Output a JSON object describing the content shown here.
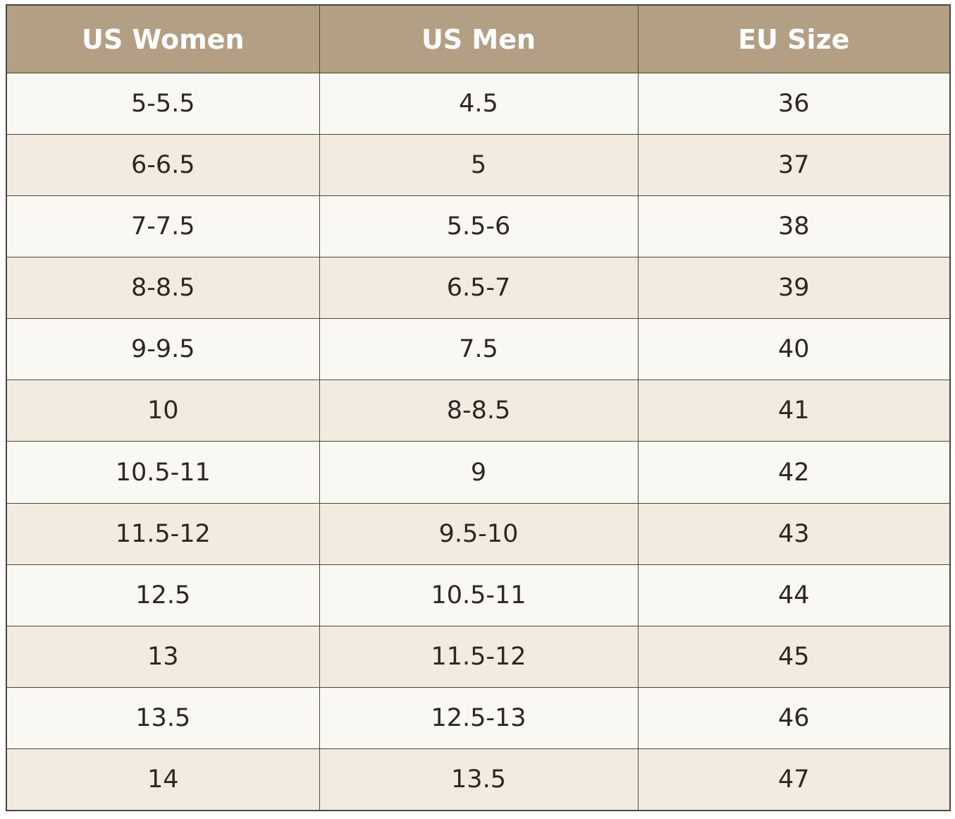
{
  "table": {
    "header": [
      "US Women",
      "US Men",
      "EU Size"
    ],
    "rows": [
      [
        "5-5.5",
        "4.5",
        "36"
      ],
      [
        "6-6.5",
        "5",
        "37"
      ],
      [
        "7-7.5",
        "5.5-6",
        "38"
      ],
      [
        "8-8.5",
        "6.5-7",
        "39"
      ],
      [
        "9-9.5",
        "7.5",
        "40"
      ],
      [
        "10",
        "8-8.5",
        "41"
      ],
      [
        "10.5-11",
        "9",
        "42"
      ],
      [
        "11.5-12",
        "9.5-10",
        "43"
      ],
      [
        "12.5",
        "10.5-11",
        "44"
      ],
      [
        "13",
        "11.5-12",
        "45"
      ],
      [
        "13.5",
        "12.5-13",
        "46"
      ],
      [
        "14",
        "13.5",
        "47"
      ]
    ]
  }
}
